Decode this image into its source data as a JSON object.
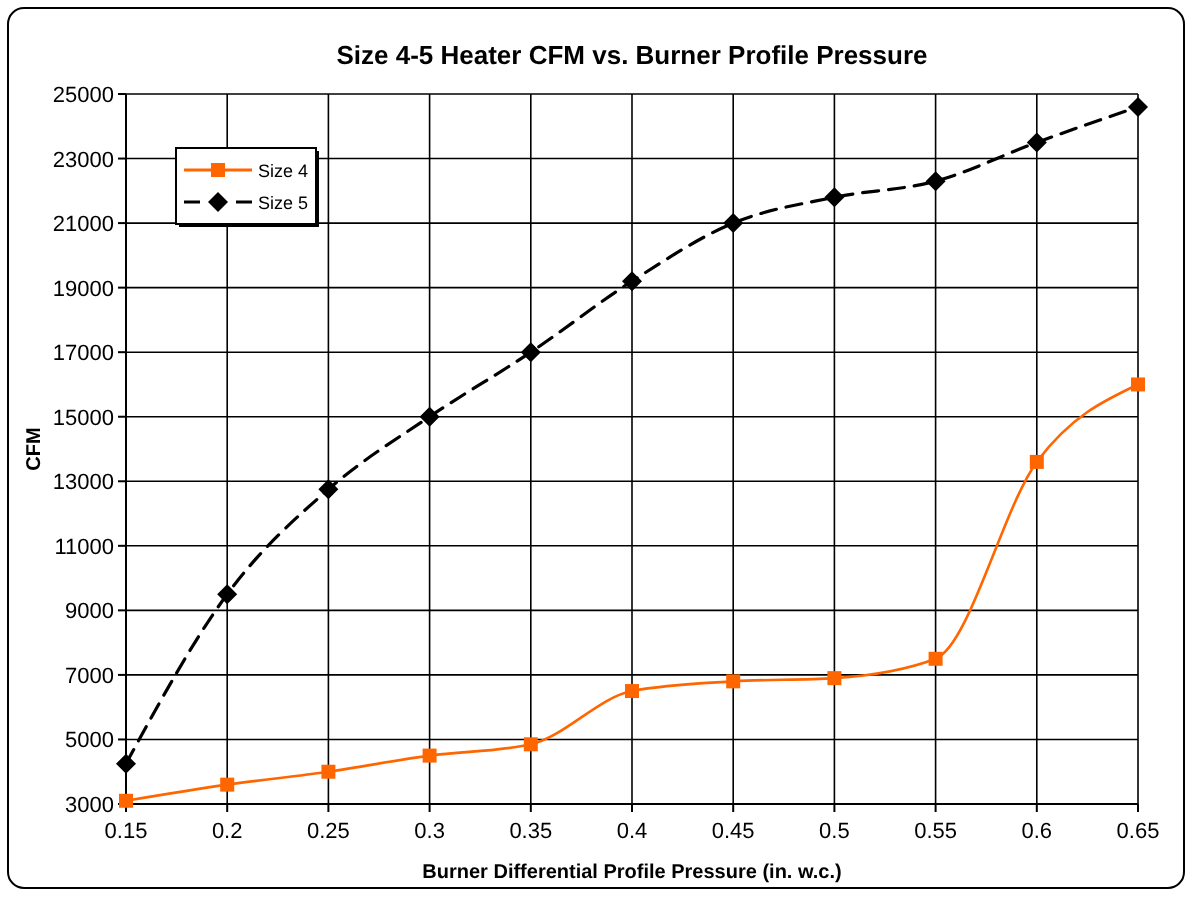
{
  "chart_data": {
    "type": "line",
    "title": "Size 4-5 Heater CFM vs. Burner Profile Pressure",
    "xlabel": "Burner Differential Profile Pressure (in. w.c.)",
    "ylabel": "CFM",
    "x": [
      0.15,
      0.2,
      0.25,
      0.3,
      0.35,
      0.4,
      0.45,
      0.5,
      0.55,
      0.6,
      0.65
    ],
    "xlim": [
      0.15,
      0.65
    ],
    "xticks": [
      0.15,
      0.2,
      0.25,
      0.3,
      0.35,
      0.4,
      0.45,
      0.5,
      0.55,
      0.6,
      0.65
    ],
    "ylim": [
      3000,
      25000
    ],
    "yticks": [
      3000,
      5000,
      7000,
      9000,
      11000,
      13000,
      15000,
      17000,
      19000,
      21000,
      23000,
      25000
    ],
    "grid": true,
    "legend": "top left",
    "series": [
      {
        "name": "Size 4",
        "color": "#ff6600",
        "marker": "square",
        "line_style": "solid",
        "values": [
          3100,
          3600,
          4000,
          4500,
          4850,
          6500,
          6800,
          6900,
          7500,
          13600,
          16000
        ]
      },
      {
        "name": "Size 5",
        "color": "#000000",
        "marker": "diamond",
        "line_style": "dashed",
        "values": [
          4250,
          9500,
          12750,
          15000,
          17000,
          19200,
          21000,
          21800,
          22300,
          23500,
          24600
        ]
      }
    ]
  }
}
